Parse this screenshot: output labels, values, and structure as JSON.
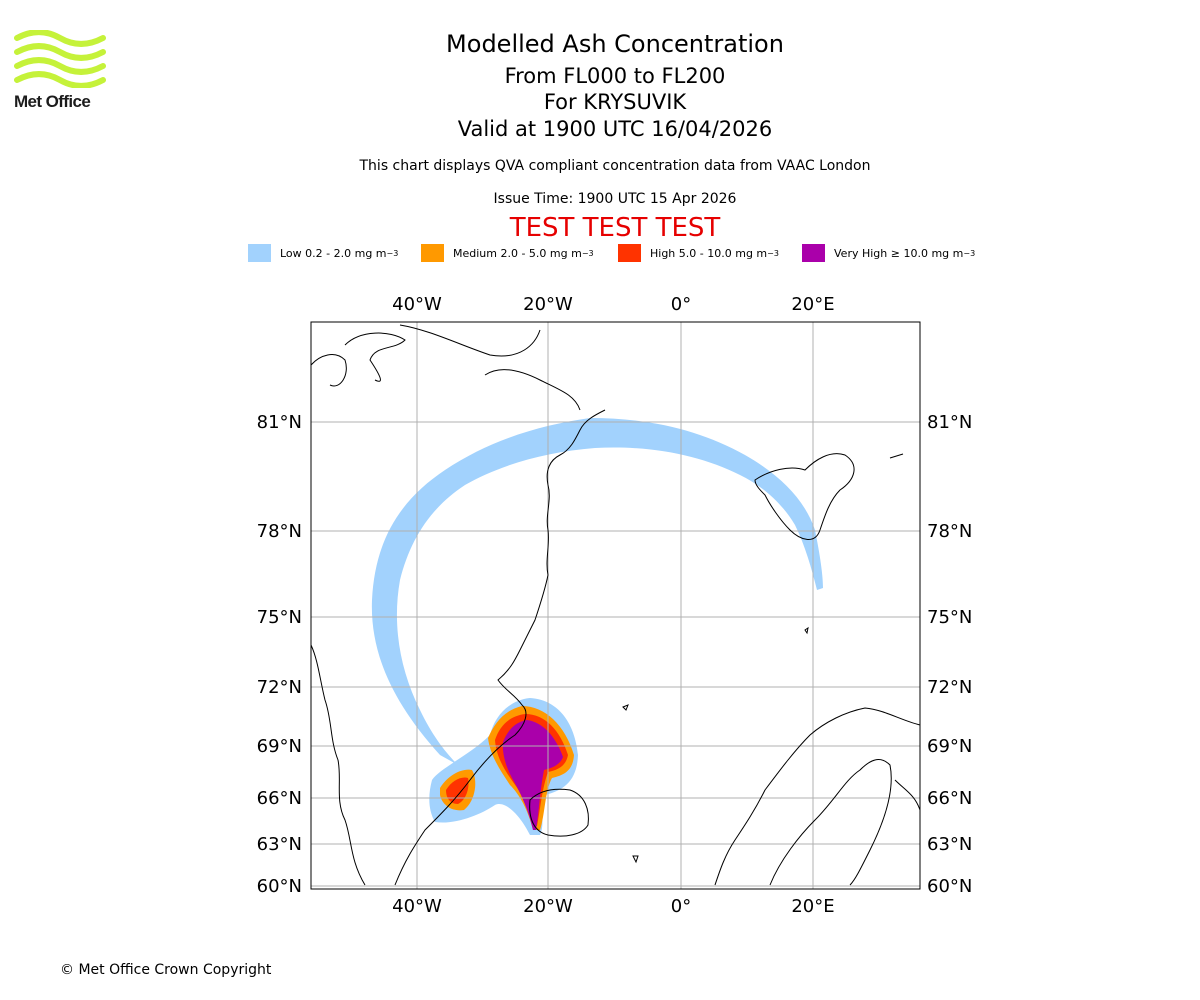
{
  "header": {
    "logo_text": "Met Office",
    "title": "Modelled Ash Concentration",
    "subtitle_levels": "From FL000 to FL200",
    "subtitle_volcano": "For KRYSUVIK",
    "subtitle_valid": "Valid at 1900 UTC 16/04/2026",
    "description": "This chart displays QVA compliant concentration data from VAAC London",
    "issue_time": "Issue Time: 1900 UTC 15 Apr 2026",
    "test_banner": "TEST TEST TEST"
  },
  "legend": [
    {
      "label": "Low 0.2 - 2.0 mg m",
      "sup": "−3",
      "color": "#a2d2fd"
    },
    {
      "label": "Medium 2.0 - 5.0 mg m",
      "sup": "−3",
      "color": "#ff9900"
    },
    {
      "label": "High 5.0 - 10.0 mg m",
      "sup": "−3",
      "color": "#ff3300"
    },
    {
      "label": "Very High  ≥  10.0 mg m",
      "sup": "−3",
      "color": "#aa00aa"
    }
  ],
  "map": {
    "longitude_labels": [
      "40°W",
      "20°W",
      "0°",
      "20°E"
    ],
    "latitude_labels": [
      "81°N",
      "78°N",
      "75°N",
      "72°N",
      "69°N",
      "66°N",
      "63°N",
      "60°N"
    ],
    "colors": {
      "low": "#a2d2fd",
      "medium": "#ff9900",
      "high": "#ff3300",
      "very_high": "#aa00aa",
      "grid": "#b0b0b0",
      "coast": "#000000"
    }
  },
  "footer": {
    "copyright": "© Met Office Crown Copyright"
  }
}
